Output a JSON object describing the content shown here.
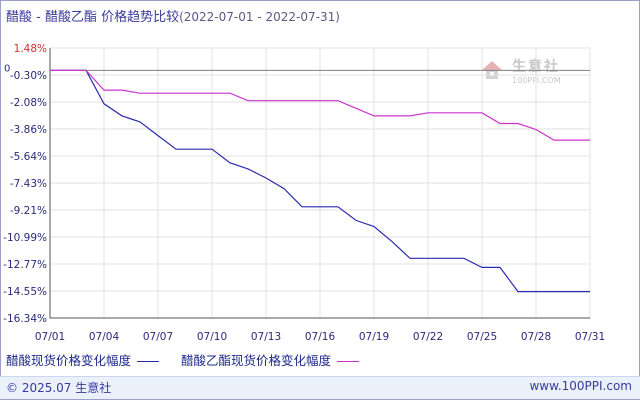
{
  "header": {
    "title": "醋酸 - 醋酸乙酯 价格趋势比较",
    "date_range": "(2022-07-01 - 2022-07-31)"
  },
  "watermark": {
    "name": "生意社",
    "url": "100PPI.COM"
  },
  "legend": {
    "items": [
      {
        "label": "醋酸现货价格变化幅度",
        "color": "#2b2bb0"
      },
      {
        "label": "醋酸乙酯现货价格变化幅度",
        "color": "#cc33cc"
      }
    ]
  },
  "footer": {
    "copyright": "© 2025.07 生意社",
    "site": "www.100PPI.com"
  },
  "chart_data": {
    "type": "line",
    "title": "醋酸 - 醋酸乙酯 价格趋势比较",
    "xlabel": "",
    "ylabel": "",
    "x_ticks": [
      "07/01",
      "07/04",
      "07/07",
      "07/10",
      "07/13",
      "07/16",
      "07/19",
      "07/22",
      "07/25",
      "07/28",
      "07/31"
    ],
    "y_ticks": [
      "1.48%",
      "-0.30%",
      "-2.08%",
      "-3.86%",
      "-5.64%",
      "-7.43%",
      "-9.21%",
      "-10.99%",
      "-12.77%",
      "-14.55%",
      "-16.34%"
    ],
    "ylim": [
      -16.34,
      1.48
    ],
    "zero_label": "0",
    "grid": "horizontal",
    "x": [
      "07/01",
      "07/02",
      "07/03",
      "07/04",
      "07/05",
      "07/06",
      "07/07",
      "07/08",
      "07/09",
      "07/10",
      "07/11",
      "07/12",
      "07/13",
      "07/14",
      "07/15",
      "07/16",
      "07/17",
      "07/18",
      "07/19",
      "07/20",
      "07/21",
      "07/22",
      "07/23",
      "07/24",
      "07/25",
      "07/26",
      "07/27",
      "07/28",
      "07/29",
      "07/30",
      "07/31"
    ],
    "series": [
      {
        "name": "醋酸现货价格变化幅度",
        "color": "#2b2bb0",
        "values": [
          0,
          0,
          0,
          -2.2,
          -3.0,
          -3.4,
          -4.3,
          -5.2,
          -5.2,
          -5.2,
          -6.1,
          -6.5,
          -7.1,
          -7.8,
          -9.0,
          -9.0,
          -9.0,
          -9.9,
          -10.3,
          -11.3,
          -12.4,
          -12.4,
          -12.4,
          -12.4,
          -13.0,
          -13.0,
          -14.6,
          -14.6,
          -14.6,
          -14.6,
          -14.6
        ]
      },
      {
        "name": "醋酸乙酯现货价格变化幅度",
        "color": "#cc33cc",
        "values": [
          0,
          0,
          0,
          -1.3,
          -1.3,
          -1.5,
          -1.5,
          -1.5,
          -1.5,
          -1.5,
          -1.5,
          -2.0,
          -2.0,
          -2.0,
          -2.0,
          -2.0,
          -2.0,
          -2.5,
          -3.0,
          -3.0,
          -3.0,
          -2.8,
          -2.8,
          -2.8,
          -2.8,
          -3.5,
          -3.5,
          -3.9,
          -4.6,
          -4.6,
          -4.6
        ]
      }
    ]
  }
}
